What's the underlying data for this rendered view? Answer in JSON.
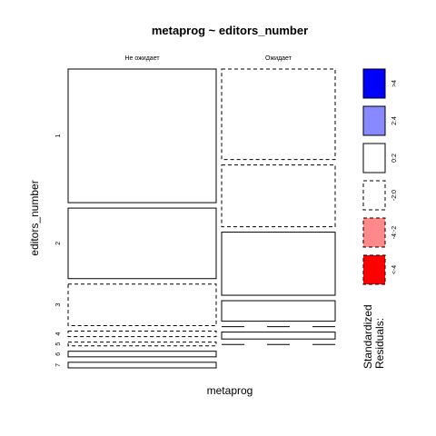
{
  "chart_data": {
    "type": "mosaic",
    "title": "metaprog ~ editors_number",
    "xlabel": "metaprog",
    "ylabel": "editors_number",
    "columns": [
      "Не ожидает",
      "Ожидает"
    ],
    "rows": [
      "1",
      "2",
      "3",
      "4",
      "5",
      "6",
      "7"
    ],
    "cells": [
      {
        "col": "Не ожидает",
        "row": "1",
        "share": 0.502,
        "residual_class": "0:2"
      },
      {
        "col": "Не ожидает",
        "row": "2",
        "share": 0.265,
        "residual_class": "0:2"
      },
      {
        "col": "Не ожидает",
        "row": "3",
        "share": 0.156,
        "residual_class": "-2:0"
      },
      {
        "col": "Не ожидает",
        "row": "4",
        "share": 0.021,
        "residual_class": "-2:0"
      },
      {
        "col": "Не ожидает",
        "row": "5",
        "share": 0.014,
        "residual_class": "-2:0"
      },
      {
        "col": "Не ожидает",
        "row": "6",
        "share": 0.021,
        "residual_class": "0:2"
      },
      {
        "col": "Не ожидает",
        "row": "7",
        "share": 0.021,
        "residual_class": "0:2"
      },
      {
        "col": "Ожидает",
        "row": "1",
        "share": 0.34,
        "residual_class": "-2:0"
      },
      {
        "col": "Ожидает",
        "row": "2",
        "share": 0.232,
        "residual_class": "-2:0"
      },
      {
        "col": "Ожидает",
        "row": "3",
        "share": 0.237,
        "residual_class": "0:2"
      },
      {
        "col": "Ожидает",
        "row": "4",
        "share": 0.077,
        "residual_class": "0:2"
      },
      {
        "col": "Ожидает",
        "row": "5",
        "share": 0.0,
        "residual_class": "-2:0"
      },
      {
        "col": "Ожидает",
        "row": "6",
        "share": 0.026,
        "residual_class": "0:2"
      },
      {
        "col": "Ожидает",
        "row": "7",
        "share": 0.0,
        "residual_class": "-2:0"
      }
    ],
    "legend": {
      "title": "Standardized\nResiduals:",
      "entries": [
        {
          "label": ">4",
          "fill": "#0000ff",
          "dashed": false
        },
        {
          "label": "2:4",
          "fill": "#8888ff",
          "dashed": false
        },
        {
          "label": "0:2",
          "fill": "#ffffff",
          "dashed": false
        },
        {
          "label": "-2:0",
          "fill": "#ffffff",
          "dashed": true
        },
        {
          "label": "-4:-2",
          "fill": "#ff8888",
          "dashed": true
        },
        {
          "label": "<-4",
          "fill": "#ff0000",
          "dashed": true
        }
      ],
      "position": "right"
    },
    "legend_title_lines": [
      "Standardized",
      "Residuals:"
    ]
  }
}
